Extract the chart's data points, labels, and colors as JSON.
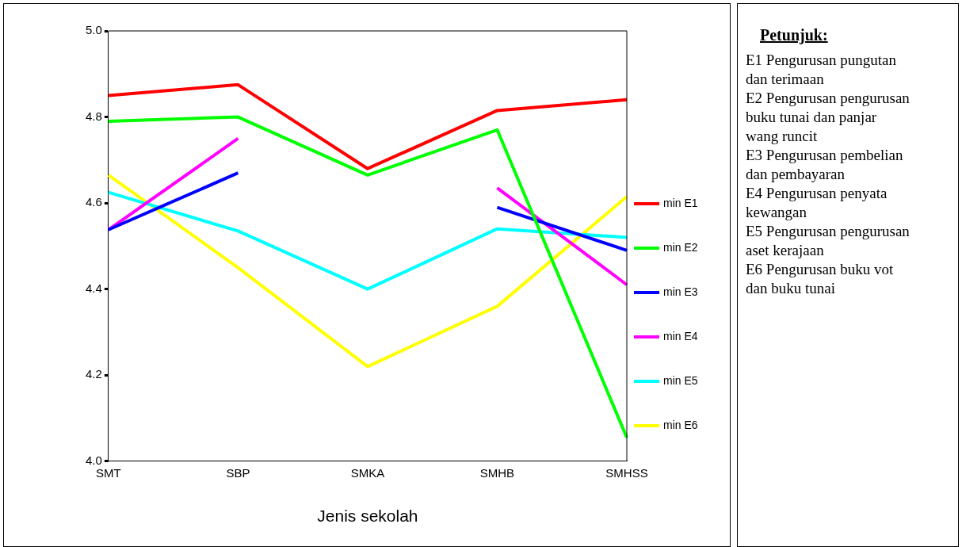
{
  "chart_data": {
    "type": "line",
    "xlabel": "Jenis sekolah",
    "categories": [
      "SMT",
      "SBP",
      "SMKA",
      "SMHB",
      "SMHSS"
    ],
    "series": [
      {
        "name": "min E1",
        "color": "#ff0000",
        "values": [
          4.85,
          4.875,
          4.68,
          4.815,
          4.84
        ]
      },
      {
        "name": "min E2",
        "color": "#00ff00",
        "values": [
          4.79,
          4.8,
          4.665,
          4.77,
          4.055
        ]
      },
      {
        "name": "min E3",
        "color": "#0000ff",
        "values": [
          4.538,
          4.67,
          null,
          4.59,
          4.49
        ]
      },
      {
        "name": "min E4",
        "color": "#ff00ff",
        "values": [
          4.538,
          4.75,
          null,
          4.635,
          4.41
        ]
      },
      {
        "name": "min E5",
        "color": "#00ffff",
        "values": [
          4.625,
          4.535,
          4.4,
          4.54,
          4.52
        ]
      },
      {
        "name": "min E6",
        "color": "#ffff00",
        "values": [
          4.665,
          4.45,
          4.22,
          4.36,
          4.615
        ]
      }
    ],
    "ylim": [
      4,
      5
    ],
    "yticks": [
      {
        "value": 4,
        "label": "4.0"
      },
      4.2,
      4.4,
      4.6,
      4.8,
      {
        "value": 5,
        "label": "5.0"
      }
    ],
    "grid": false,
    "legend": "right",
    "marker": "none",
    "line_style": "solid",
    "annotations": [
      "Petunjuk:",
      "E1 Pengurusan pungutan dan terimaan",
      "E2 Pengurusan pengurusan buku tunai dan panjar wang runcit",
      "E3 Pengurusan pembelian dan pembayaran",
      "E4 Pengurusan penyata kewangan",
      "E5 Pengurusan pengurusan aset kerajaan",
      "E6 Pengurusan buku vot dan buku tunai"
    ]
  }
}
